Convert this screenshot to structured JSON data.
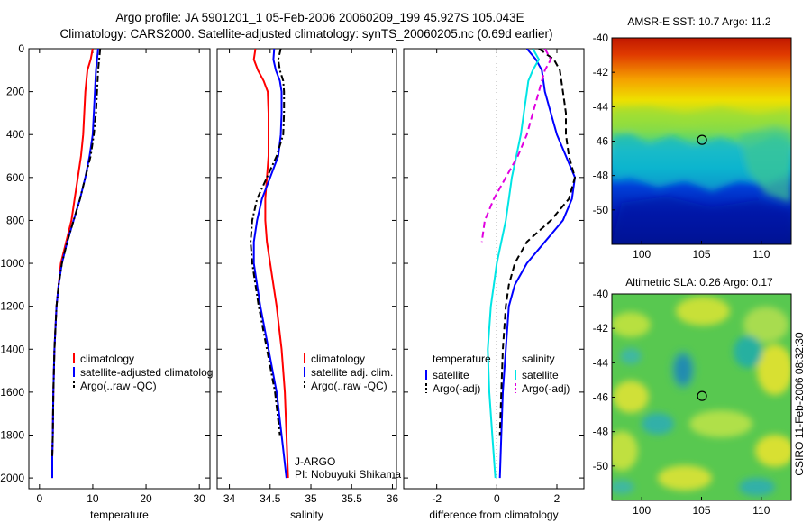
{
  "title": {
    "line1": "Argo profile: JA 5901201_1 05-Feb-2006 20060209_199 45.927S 105.043E",
    "line2": "Climatology: CARS2000. Satellite-adjusted climatology: synTS_20060205.nc (0.69d earlier)"
  },
  "credit": "CSIRO 11-Feb-2006 08:32:30",
  "colors": {
    "climatology": "#ff0000",
    "satellite": "#0000ff",
    "argo": "#000000",
    "salinity_satellite": "#00e5e5",
    "salinity_argo": "#e000e0"
  },
  "chart_data": [
    {
      "type": "line",
      "name": "temperature",
      "xlabel": "temperature",
      "xlim": [
        -2,
        32
      ],
      "ylim": [
        2050,
        0
      ],
      "xticks": [
        0,
        10,
        20,
        30
      ],
      "yticks": [
        0,
        200,
        400,
        600,
        800,
        1000,
        1200,
        1400,
        1600,
        1800,
        2000
      ],
      "series": [
        {
          "name": "climatology",
          "color": "#ff0000",
          "style": "solid",
          "x": [
            10.0,
            9.6,
            9.0,
            8.6,
            8.4,
            8.2,
            7.8,
            7.2,
            6.6,
            6.0,
            5.0,
            4.0,
            3.6,
            3.2,
            2.8,
            2.6,
            2.5,
            2.4,
            2.4
          ],
          "y": [
            0,
            50,
            100,
            200,
            300,
            400,
            500,
            600,
            700,
            800,
            900,
            1000,
            1100,
            1200,
            1400,
            1600,
            1800,
            1900,
            2000
          ]
        },
        {
          "name": "satellite-adjusted climatology",
          "color": "#0000ff",
          "style": "solid",
          "x": [
            11.0,
            10.8,
            10.6,
            10.4,
            10.2,
            10.0,
            9.4,
            8.6,
            7.6,
            6.4,
            5.2,
            4.2,
            3.6,
            3.2,
            2.8,
            2.6,
            2.5,
            2.4,
            2.4
          ],
          "y": [
            0,
            50,
            100,
            200,
            300,
            400,
            500,
            600,
            700,
            800,
            900,
            1000,
            1100,
            1200,
            1400,
            1600,
            1800,
            1900,
            2000
          ]
        },
        {
          "name": "Argo(..raw -QC)",
          "color": "#000000",
          "style": "dashdot",
          "x": [
            11.4,
            11.2,
            11.0,
            10.8,
            10.6,
            10.2,
            9.6,
            8.6,
            7.6,
            6.4,
            5.2,
            4.2,
            3.6,
            3.2,
            2.8,
            2.6,
            2.5,
            2.4
          ],
          "y": [
            0,
            50,
            100,
            200,
            300,
            400,
            500,
            600,
            700,
            800,
            900,
            1000,
            1100,
            1200,
            1400,
            1600,
            1800,
            1900
          ]
        }
      ],
      "legend": {
        "placement": "lower-right",
        "labels": [
          "climatology",
          "satellite-adjusted climatolog",
          "Argo(..raw -QC)"
        ]
      }
    },
    {
      "type": "line",
      "name": "salinity",
      "xlabel": "salinity",
      "xlim": [
        33.85,
        36.05
      ],
      "ylim": [
        2050,
        0
      ],
      "xticks": [
        34,
        34.5,
        35,
        35.5,
        36
      ],
      "yticks": [
        0,
        200,
        400,
        600,
        800,
        1000,
        1200,
        1400,
        1600,
        1800,
        2000
      ],
      "series": [
        {
          "name": "climatology",
          "color": "#ff0000",
          "style": "solid",
          "x": [
            34.32,
            34.3,
            34.35,
            34.42,
            34.47,
            34.48,
            34.48,
            34.48,
            34.46,
            34.44,
            34.44,
            34.46,
            34.5,
            34.58,
            34.64,
            34.68,
            34.7,
            34.72
          ],
          "y": [
            0,
            50,
            100,
            150,
            200,
            300,
            400,
            500,
            600,
            700,
            800,
            900,
            1000,
            1200,
            1400,
            1600,
            1800,
            2000
          ]
        },
        {
          "name": "satellite adj. clim.",
          "color": "#0000ff",
          "style": "solid",
          "x": [
            34.55,
            34.54,
            34.57,
            34.62,
            34.64,
            34.64,
            34.63,
            34.6,
            34.5,
            34.4,
            34.34,
            34.3,
            34.3,
            34.38,
            34.48,
            34.58,
            34.64,
            34.7
          ],
          "y": [
            0,
            50,
            100,
            150,
            200,
            300,
            400,
            500,
            600,
            700,
            800,
            900,
            1000,
            1200,
            1400,
            1600,
            1800,
            2000
          ]
        },
        {
          "name": "Argo(..raw -QC)",
          "color": "#000000",
          "style": "dashdot",
          "x": [
            34.63,
            34.6,
            34.62,
            34.66,
            34.67,
            34.67,
            34.66,
            34.58,
            34.46,
            34.34,
            34.28,
            34.26,
            34.28,
            34.36,
            34.46,
            34.56,
            34.62
          ],
          "y": [
            0,
            50,
            100,
            150,
            200,
            300,
            400,
            500,
            600,
            700,
            800,
            900,
            1000,
            1200,
            1400,
            1600,
            1800
          ]
        }
      ],
      "legend": {
        "placement": "lower-right",
        "labels": [
          "climatology",
          "satellite adj. clim.",
          "Argo(..raw -QC)"
        ]
      },
      "annotation": {
        "line1": "J-ARGO",
        "line2": "PI: Nobuyuki Shikama"
      }
    },
    {
      "type": "line",
      "name": "difference",
      "xlabel": "difference from climatology",
      "xlim": [
        -3.1,
        2.9
      ],
      "ylim": [
        2050,
        0
      ],
      "xticks": [
        -2,
        0,
        2
      ],
      "yticks": [
        0,
        200,
        400,
        600,
        800,
        1000,
        1200,
        1400,
        1600,
        1800,
        2000
      ],
      "reference_line_x": 0,
      "series": [
        {
          "name": "temperature satellite",
          "color": "#0000ff",
          "style": "solid",
          "x": [
            1.0,
            1.3,
            1.5,
            1.6,
            1.8,
            2.0,
            2.3,
            2.6,
            2.5,
            2.2,
            1.6,
            1.0,
            0.6,
            0.4,
            0.3,
            0.2,
            0.15,
            0.1
          ],
          "y": [
            0,
            50,
            100,
            200,
            300,
            400,
            500,
            600,
            700,
            800,
            900,
            1000,
            1100,
            1200,
            1400,
            1600,
            1800,
            2000
          ]
        },
        {
          "name": "temperature Argo(-adj)",
          "color": "#000000",
          "style": "dashed",
          "x": [
            1.4,
            1.9,
            2.1,
            2.2,
            2.3,
            2.3,
            2.4,
            2.6,
            2.4,
            1.8,
            1.0,
            0.6,
            0.4,
            0.3,
            0.2,
            0.15,
            0.1
          ],
          "y": [
            0,
            50,
            100,
            200,
            300,
            400,
            500,
            600,
            700,
            800,
            900,
            1000,
            1100,
            1200,
            1400,
            1600,
            1800
          ]
        },
        {
          "name": "salinity satellite",
          "color": "#00e5e5",
          "style": "solid",
          "x": [
            1.2,
            1.4,
            1.2,
            1.05,
            1.0,
            0.9,
            0.8,
            0.65,
            0.5,
            0.4,
            0.3,
            0.15,
            0.0,
            -0.2,
            -0.3,
            -0.25,
            -0.15,
            -0.05
          ],
          "y": [
            0,
            50,
            100,
            150,
            200,
            300,
            400,
            500,
            600,
            700,
            800,
            900,
            1000,
            1200,
            1400,
            1600,
            1800,
            2000
          ]
        },
        {
          "name": "salinity Argo(-adj)",
          "color": "#e000e0",
          "style": "dashed",
          "x": [
            1.6,
            1.8,
            1.6,
            1.5,
            1.4,
            1.2,
            1.0,
            0.7,
            0.3,
            -0.1,
            -0.4,
            -0.5
          ],
          "y": [
            0,
            50,
            100,
            150,
            200,
            300,
            400,
            500,
            600,
            700,
            800,
            900
          ]
        }
      ],
      "legend": {
        "placement": "lower-middle",
        "group1": "temperature",
        "group2": "salinity",
        "labels": [
          "satellite",
          "Argo(-adj)",
          "satellite",
          "Argo(-adj)"
        ]
      }
    },
    {
      "type": "heatmap",
      "name": "AMSR-E SST",
      "title": "AMSR-E SST: 10.7  Argo: 11.2",
      "xlim": [
        97.5,
        112.5
      ],
      "ylim": [
        -52,
        -40
      ],
      "xticks": [
        100,
        105,
        110
      ],
      "yticks": [
        -40,
        -42,
        -44,
        -46,
        -48,
        -50
      ],
      "marker": {
        "lon": 105.043,
        "lat": -45.927
      }
    },
    {
      "type": "heatmap",
      "name": "Altimetric SLA",
      "title": "Altimetric SLA: 0.26  Argo: 0.17",
      "xlim": [
        97.5,
        112.5
      ],
      "ylim": [
        -52,
        -40
      ],
      "xticks": [
        100,
        105,
        110
      ],
      "yticks": [
        -40,
        -42,
        -44,
        -46,
        -48,
        -50
      ],
      "marker": {
        "lon": 105.043,
        "lat": -45.927
      }
    }
  ]
}
